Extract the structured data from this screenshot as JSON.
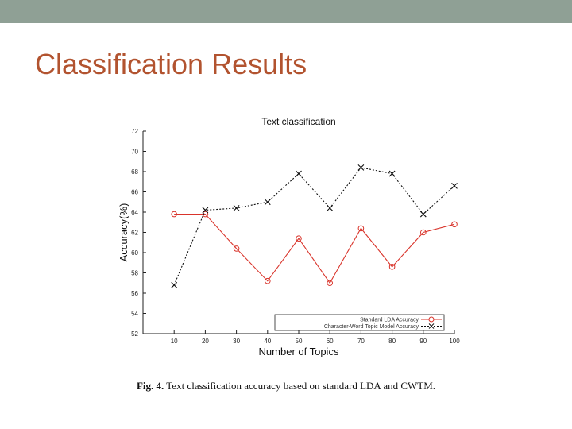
{
  "slide": {
    "title": "Classification Results",
    "caption_label": "Fig. 4.",
    "caption_text": "Text classification accuracy based on standard LDA and CWTM.",
    "colors": {
      "topbar": "#8fa095",
      "title": "#b2532f"
    }
  },
  "chart_data": {
    "type": "line",
    "title": "Text classification",
    "xlabel": "Number of Topics",
    "ylabel": "Accuracy(%)",
    "x": [
      10,
      20,
      30,
      40,
      50,
      60,
      70,
      80,
      90,
      100
    ],
    "xlim": [
      0,
      100
    ],
    "ylim": [
      52,
      72
    ],
    "xticks": [
      10,
      20,
      30,
      40,
      50,
      60,
      70,
      80,
      90,
      100
    ],
    "yticks": [
      52,
      54,
      56,
      58,
      60,
      62,
      64,
      66,
      68,
      70,
      72
    ],
    "grid": false,
    "legend_position": "bottom-right",
    "series": [
      {
        "name": "Standard LDA Accuracy",
        "color": "#d9342b",
        "marker": "circle",
        "line": "solid",
        "values": [
          63.8,
          63.8,
          60.4,
          57.2,
          61.4,
          57.0,
          62.4,
          58.6,
          62.0,
          62.8
        ]
      },
      {
        "name": "Character-Word Topic Model Accuracy",
        "color": "#111111",
        "marker": "x",
        "line": "dashed",
        "values": [
          56.8,
          64.2,
          64.4,
          65.0,
          67.8,
          64.4,
          68.4,
          67.8,
          63.8,
          66.6
        ]
      }
    ]
  }
}
